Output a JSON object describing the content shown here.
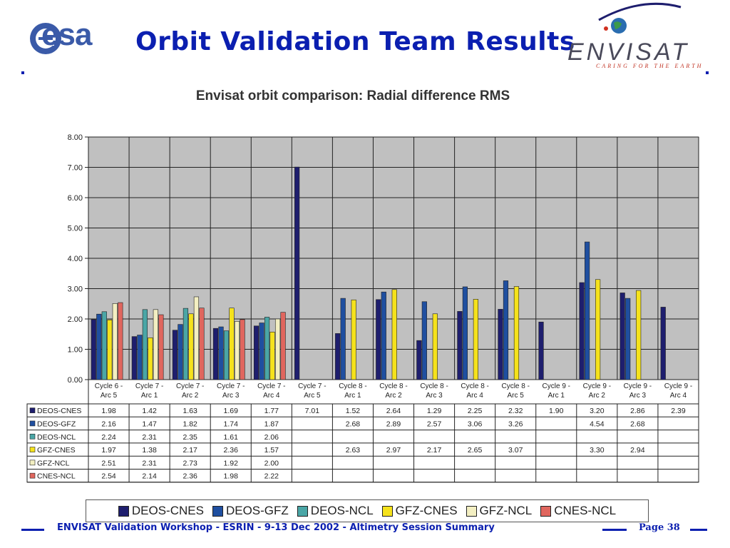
{
  "header": {
    "title": "Orbit Validation Team Results",
    "esa_logo_text": "esa",
    "envisat_logo_text": "ENVISAT",
    "envisat_tagline": "CARING FOR THE EARTH"
  },
  "colors": {
    "title_blue": "#0b1fb0",
    "plot_bg": "#c0c0c0",
    "DEOS-CNES": "#1e1e6e",
    "DEOS-GFZ": "#1f4fa0",
    "DEOS-NCL": "#4aa6a6",
    "GFZ-CNES": "#f5e21c",
    "GFZ-NCL": "#f3efc2",
    "CNES-NCL": "#e0665e"
  },
  "chart_data": {
    "type": "bar",
    "title": "Envisat orbit comparison: Radial difference RMS",
    "xlabel": "",
    "ylabel": "",
    "ylim": [
      0,
      8
    ],
    "yticks": [
      "0.00",
      "1.00",
      "2.00",
      "3.00",
      "4.00",
      "5.00",
      "6.00",
      "7.00",
      "8.00"
    ],
    "grid": true,
    "legend_position": "bottom",
    "categories": [
      [
        "Cycle 6 -",
        "Arc 5"
      ],
      [
        "Cycle 7 -",
        "Arc 1"
      ],
      [
        "Cycle 7 -",
        "Arc 2"
      ],
      [
        "Cycle 7 -",
        "Arc 3"
      ],
      [
        "Cycle 7 -",
        "Arc 4"
      ],
      [
        "Cycle 7 -",
        "Arc 5"
      ],
      [
        "Cycle 8 -",
        "Arc 1"
      ],
      [
        "Cycle 8 -",
        "Arc 2"
      ],
      [
        "Cycle 8 -",
        "Arc 3"
      ],
      [
        "Cycle 8 -",
        "Arc 4"
      ],
      [
        "Cycle 8 -",
        "Arc 5"
      ],
      [
        "Cycle 9 -",
        "Arc 1"
      ],
      [
        "Cycle 9 -",
        "Arc 2"
      ],
      [
        "Cycle 9 -",
        "Arc 3"
      ],
      [
        "Cycle 9 -",
        "Arc 4"
      ]
    ],
    "series": [
      {
        "name": "DEOS-CNES",
        "color": "#1e1e6e",
        "values": [
          1.98,
          1.42,
          1.63,
          1.69,
          1.77,
          7.01,
          1.52,
          2.64,
          1.29,
          2.25,
          2.32,
          1.9,
          3.2,
          2.86,
          2.39
        ]
      },
      {
        "name": "DEOS-GFZ",
        "color": "#1f4fa0",
        "values": [
          2.16,
          1.47,
          1.82,
          1.74,
          1.87,
          null,
          2.68,
          2.89,
          2.57,
          3.06,
          3.26,
          null,
          4.54,
          2.68,
          null
        ]
      },
      {
        "name": "DEOS-NCL",
        "color": "#4aa6a6",
        "values": [
          2.24,
          2.31,
          2.35,
          1.61,
          2.06,
          null,
          null,
          null,
          null,
          null,
          null,
          null,
          null,
          null,
          null
        ]
      },
      {
        "name": "GFZ-CNES",
        "color": "#f5e21c",
        "values": [
          1.97,
          1.38,
          2.17,
          2.36,
          1.57,
          null,
          2.63,
          2.97,
          2.17,
          2.65,
          3.07,
          null,
          3.3,
          2.94,
          null
        ]
      },
      {
        "name": "GFZ-NCL",
        "color": "#f3efc2",
        "values": [
          2.51,
          2.31,
          2.73,
          1.92,
          2.0,
          null,
          null,
          null,
          null,
          null,
          null,
          null,
          null,
          null,
          null
        ]
      },
      {
        "name": "CNES-NCL",
        "color": "#e0665e",
        "values": [
          2.54,
          2.14,
          2.36,
          1.98,
          2.22,
          null,
          null,
          null,
          null,
          null,
          null,
          null,
          null,
          null,
          null
        ]
      }
    ],
    "table_values": [
      [
        "1.98",
        "1.42",
        "1.63",
        "1.69",
        "1.77",
        "7.01",
        "1.52",
        "2.64",
        "1.29",
        "2.25",
        "2.32",
        "1.90",
        "3.20",
        "2.86",
        "2.39"
      ],
      [
        "2.16",
        "1.47",
        "1.82",
        "1.74",
        "1.87",
        "",
        "2.68",
        "2.89",
        "2.57",
        "3.06",
        "3.26",
        "",
        "4.54",
        "2.68",
        ""
      ],
      [
        "2.24",
        "2.31",
        "2.35",
        "1.61",
        "2.06",
        "",
        "",
        "",
        "",
        "",
        "",
        "",
        "",
        "",
        ""
      ],
      [
        "1.97",
        "1.38",
        "2.17",
        "2.36",
        "1.57",
        "",
        "2.63",
        "2.97",
        "2.17",
        "2.65",
        "3.07",
        "",
        "3.30",
        "2.94",
        ""
      ],
      [
        "2.51",
        "2.31",
        "2.73",
        "1.92",
        "2.00",
        "",
        "",
        "",
        "",
        "",
        "",
        "",
        "",
        "",
        ""
      ],
      [
        "2.54",
        "2.14",
        "2.36",
        "1.98",
        "2.22",
        "",
        "",
        "",
        "",
        "",
        "",
        "",
        "",
        "",
        ""
      ]
    ]
  },
  "legend": {
    "items": [
      {
        "label": "DEOS-CNES",
        "color": "#1e1e6e"
      },
      {
        "label": "DEOS-GFZ",
        "color": "#1f4fa0"
      },
      {
        "label": "DEOS-NCL",
        "color": "#4aa6a6"
      },
      {
        "label": "GFZ-CNES",
        "color": "#f5e21c"
      },
      {
        "label": "GFZ-NCL",
        "color": "#f3efc2"
      },
      {
        "label": "CNES-NCL",
        "color": "#e0665e"
      }
    ]
  },
  "footer": {
    "text": "ENVISAT Validation Workshop - ESRIN - 9-13 Dec 2002 - Altimetry Session Summary",
    "page": "Page 38"
  }
}
